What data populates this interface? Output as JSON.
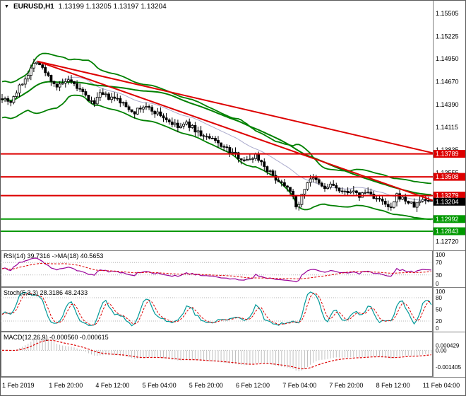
{
  "window": {
    "title": "EURUSD,H1",
    "quotes": "1.13199 1.13205 1.13197 1.13204"
  },
  "colors": {
    "up_candle": "#ffffff",
    "down_candle": "#000000",
    "candle_border": "#000000",
    "bollinger": "#008000",
    "slow_ma": "#008000",
    "mid_band": "#aaaacc",
    "trendline": "#dd0000",
    "resistance": "#dd0000",
    "support": "#009900",
    "current_tag_bg": "#000000",
    "rsi_line": "#990099",
    "rsi_ma": "#dd0000",
    "stoch_line": "#009999",
    "stoch_signal": "#dd0000",
    "macd_hist": "#c0c0c0",
    "macd_signal": "#dd0000"
  },
  "indicators": {
    "rsi": {
      "label": "RSI(14) 39.7316 ->MA(18) 40.5653",
      "axis": [
        {
          "text": "100",
          "v": 100
        },
        {
          "text": "70",
          "v": 70
        },
        {
          "text": "30",
          "v": 30
        },
        {
          "text": "0",
          "v": 0
        }
      ],
      "levels": [
        70,
        30
      ]
    },
    "stoch": {
      "label": "Stoch(5,3,3) 28.3186 48.2433",
      "axis": [
        {
          "text": "100",
          "v": 100
        },
        {
          "text": "80",
          "v": 80
        },
        {
          "text": "50",
          "v": 50
        },
        {
          "text": "20",
          "v": 20
        },
        {
          "text": "0",
          "v": 0
        }
      ],
      "levels": [
        80,
        20
      ]
    },
    "macd": {
      "label": "MACD(12,26,9) -0.000560 -0.000615",
      "axis": [
        {
          "text": "0.000429",
          "v": 0.000429
        },
        {
          "text": "0.00",
          "v": 0
        },
        {
          "text": "-0.001405",
          "v": -0.001405
        }
      ]
    }
  },
  "time_axis": [
    "1 Feb 2019",
    "1 Feb 20:00",
    "4 Feb 12:00",
    "5 Feb 04:00",
    "5 Feb 20:00",
    "6 Feb 12:00",
    "7 Feb 04:00",
    "7 Feb 20:00",
    "8 Feb 12:00",
    "11 Feb 04:00"
  ],
  "chart_data": {
    "type": "candlestick",
    "symbol": "EURUSD",
    "timeframe": "H1",
    "current_bar": {
      "open": 1.13199,
      "high": 1.13205,
      "low": 1.13197,
      "close": 1.13204
    },
    "price_axis_labels": [
      "1.15505",
      "1.15225",
      "1.14950",
      "1.14670",
      "1.14390",
      "1.14115",
      "1.13835",
      "1.13555",
      "1.13275",
      "1.12995",
      "1.12720"
    ],
    "num_candles": 150,
    "waypoints": [
      [
        0.0,
        1.1448
      ],
      [
        0.02,
        1.1443
      ],
      [
        0.04,
        1.146
      ],
      [
        0.06,
        1.1477
      ],
      [
        0.08,
        1.1494
      ],
      [
        0.095,
        1.1482
      ],
      [
        0.11,
        1.1472
      ],
      [
        0.13,
        1.146
      ],
      [
        0.15,
        1.1468
      ],
      [
        0.17,
        1.1462
      ],
      [
        0.19,
        1.1452
      ],
      [
        0.21,
        1.144
      ],
      [
        0.23,
        1.1452
      ],
      [
        0.25,
        1.1447
      ],
      [
        0.27,
        1.1445
      ],
      [
        0.29,
        1.1436
      ],
      [
        0.31,
        1.143
      ],
      [
        0.33,
        1.1437
      ],
      [
        0.35,
        1.1432
      ],
      [
        0.37,
        1.1426
      ],
      [
        0.39,
        1.1418
      ],
      [
        0.41,
        1.1411
      ],
      [
        0.43,
        1.1416
      ],
      [
        0.45,
        1.1408
      ],
      [
        0.47,
        1.14
      ],
      [
        0.49,
        1.1396
      ],
      [
        0.51,
        1.139
      ],
      [
        0.53,
        1.1382
      ],
      [
        0.55,
        1.1376
      ],
      [
        0.57,
        1.137
      ],
      [
        0.59,
        1.1378
      ],
      [
        0.61,
        1.1365
      ],
      [
        0.63,
        1.1352
      ],
      [
        0.65,
        1.1344
      ],
      [
        0.67,
        1.1338
      ],
      [
        0.685,
        1.1312
      ],
      [
        0.7,
        1.133
      ],
      [
        0.715,
        1.135
      ],
      [
        0.73,
        1.1346
      ],
      [
        0.75,
        1.1336
      ],
      [
        0.77,
        1.1342
      ],
      [
        0.79,
        1.133
      ],
      [
        0.81,
        1.1335
      ],
      [
        0.83,
        1.1327
      ],
      [
        0.85,
        1.1333
      ],
      [
        0.87,
        1.1325
      ],
      [
        0.89,
        1.1318
      ],
      [
        0.905,
        1.131
      ],
      [
        0.92,
        1.1328
      ],
      [
        0.94,
        1.1322
      ],
      [
        0.96,
        1.1315
      ],
      [
        0.98,
        1.1324
      ],
      [
        1.0,
        1.13204
      ]
    ],
    "levels": {
      "resistance": [
        {
          "price": 1.13789,
          "label": "1.13789"
        },
        {
          "price": 1.13508,
          "label": "1.13508"
        },
        {
          "price": 1.13279,
          "label": "1.13279"
        }
      ],
      "support": [
        {
          "price": 1.12992,
          "label": "1.12992"
        },
        {
          "price": 1.12843,
          "label": "1.12843"
        }
      ],
      "current": {
        "price": 1.13204,
        "label": "1.13204"
      }
    },
    "trendlines": [
      {
        "from": [
          0.085,
          1.1492
        ],
        "to": [
          1.0,
          1.1322
        ]
      },
      {
        "from": [
          0.085,
          1.1492
        ],
        "to": [
          1.0,
          1.138
        ]
      }
    ],
    "overlays": {
      "bollinger_period": 20,
      "bollinger_dev": 2,
      "slow_ma_period": 50
    },
    "indicator_values": {
      "rsi": 39.7316,
      "rsi_ma": 40.5653,
      "stoch_k": 28.3186,
      "stoch_d": 48.2433,
      "macd": -0.00056,
      "macd_signal": -0.000615
    }
  }
}
